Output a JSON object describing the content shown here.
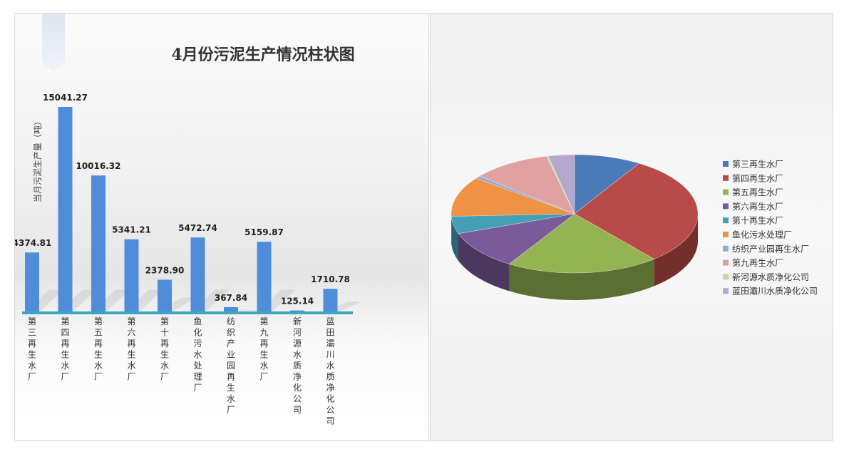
{
  "chart_data": [
    {
      "type": "bar",
      "title": "4月份污泥生产情况柱状图",
      "ylabel": "当月污泥生产量（吨）",
      "xlabel": "",
      "categories": [
        "第三再生水厂",
        "第四再生水厂",
        "第五再生水厂",
        "第六再生水厂",
        "第十再生水厂",
        "鱼化污水处理厂",
        "纺织产业园再生水厂",
        "第九再生水厂",
        "新河源水质净化公司",
        "蓝田灞川水质净化公司"
      ],
      "values": [
        4374.81,
        15041.27,
        10016.32,
        5341.21,
        2378.9,
        5472.74,
        367.84,
        5159.87,
        125.14,
        1710.78
      ],
      "value_labels": [
        "4374.81",
        "15041.27",
        "10016.32",
        "5341.21",
        "2378.90",
        "5472.74",
        "367.84",
        "5159.87",
        "125.14",
        "1710.78"
      ],
      "ylim": [
        0,
        15041.27
      ],
      "grid": false,
      "colors": {
        "bar": "#4f8ddb",
        "axis": "#3aa9c0"
      }
    },
    {
      "type": "pie",
      "style": "3d",
      "categories": [
        "第三再生水厂",
        "第四再生水厂",
        "第五再生水厂",
        "第六再生水厂",
        "第十再生水厂",
        "鱼化污水处理厂",
        "纺织产业园再生水厂",
        "第九再生水厂",
        "新河源水质净化公司",
        "蓝田灞川水质净化公司"
      ],
      "values": [
        4374.81,
        15041.27,
        10016.32,
        5341.21,
        2378.9,
        5472.74,
        367.84,
        5159.87,
        125.14,
        1710.78
      ],
      "colors": [
        "#4a7ab8",
        "#b84b47",
        "#94b352",
        "#7a5b9a",
        "#43a0b7",
        "#ee9346",
        "#92abd6",
        "#e0a2a1",
        "#c4d9a0",
        "#b6a7cc"
      ],
      "legend_position": "right"
    }
  ]
}
